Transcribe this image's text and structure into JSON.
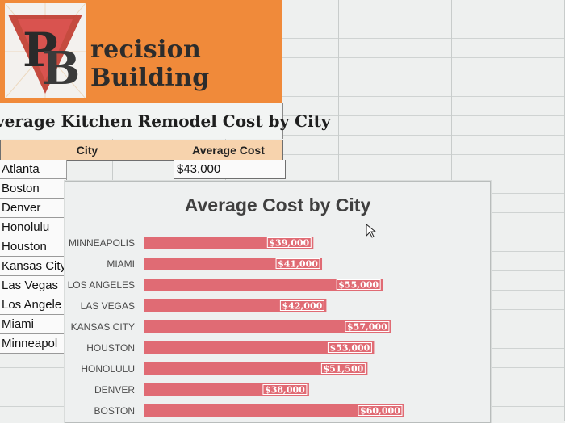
{
  "banner": {
    "brand_text": "recision Building",
    "logo_letters": "PB"
  },
  "table": {
    "title": "verage Kitchen Remodel Cost by City",
    "headers": {
      "city": "City",
      "cost": "Average Cost"
    },
    "cities": [
      "Atlanta",
      "Boston",
      "Denver",
      "Honolulu",
      "Houston",
      "Kansas City",
      "Las Vegas",
      "Los Angele",
      "Miami",
      "Minneapol"
    ],
    "first_cost": "$43,000"
  },
  "colors": {
    "banner": "#f08a3a",
    "header_fill": "#f7d3ad",
    "bar": "#e06b74"
  },
  "chart_data": {
    "type": "bar",
    "orientation": "horizontal",
    "title": "Average Cost by City",
    "categories": [
      "MINNEAPOLIS",
      "MIAMI",
      "LOS ANGELES",
      "LAS VEGAS",
      "KANSAS CITY",
      "HOUSTON",
      "HONOLULU",
      "DENVER",
      "BOSTON"
    ],
    "values": [
      39000,
      41000,
      55000,
      42000,
      57000,
      53000,
      51500,
      38000,
      60000
    ],
    "data_labels": [
      "$39,000",
      "$41,000",
      "$55,000",
      "$42,000",
      "$57,000",
      "$53,000",
      "$51,500",
      "$38,000",
      "$60,000"
    ],
    "xlim": [
      0,
      60000
    ],
    "grid": false,
    "legend": "none"
  }
}
